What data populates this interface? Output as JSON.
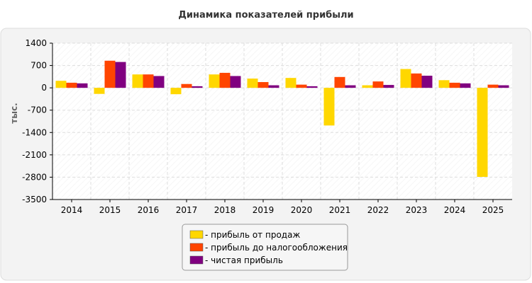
{
  "chart_data": {
    "type": "bar",
    "title": "Динамика показателей прибыли",
    "ylabel": "тыс.",
    "xlabel": "",
    "categories": [
      "2014",
      "2015",
      "2016",
      "2017",
      "2018",
      "2019",
      "2020",
      "2021",
      "2022",
      "2023",
      "2024",
      "2025"
    ],
    "ylim": [
      -3500,
      1400
    ],
    "yticks": [
      1400,
      700,
      0,
      -700,
      -1400,
      -2100,
      -2800,
      -3500
    ],
    "grid": true,
    "legend_position": "bottom-center",
    "series": [
      {
        "name": "- прибыль от продаж",
        "color": "#FFD700",
        "values": [
          220,
          -190,
          420,
          -200,
          420,
          290,
          310,
          -1180,
          80,
          590,
          240,
          -2790
        ]
      },
      {
        "name": "- прибыль до налогообложения",
        "color": "#FF4500",
        "values": [
          160,
          850,
          420,
          120,
          470,
          180,
          100,
          340,
          200,
          450,
          160,
          100
        ]
      },
      {
        "name": "- чистая прибыль",
        "color": "#800080",
        "values": [
          140,
          810,
          370,
          50,
          370,
          80,
          50,
          80,
          90,
          380,
          140,
          80
        ]
      }
    ]
  }
}
